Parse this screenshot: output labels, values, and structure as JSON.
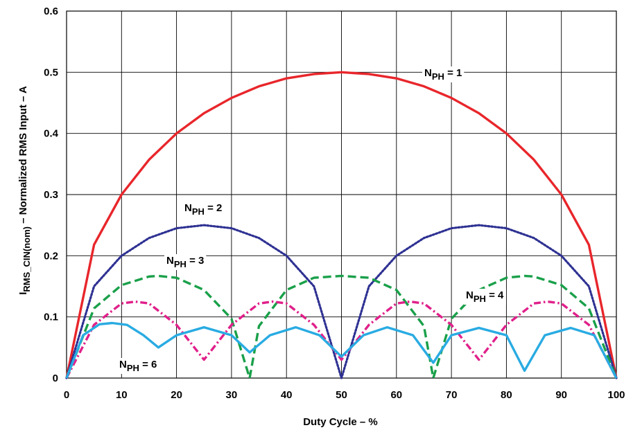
{
  "chart_data": {
    "type": "line",
    "title": "",
    "xlabel": "Duty Cycle – %",
    "ylabel": {
      "base": "I",
      "sub": "RMS_CIN(nom)",
      "rest": " – Normalized RMS Input – A"
    },
    "xlim": [
      0,
      100
    ],
    "ylim": [
      0,
      0.6
    ],
    "xticks": [
      "0",
      "10",
      "20",
      "30",
      "40",
      "50",
      "60",
      "70",
      "80",
      "90",
      "100"
    ],
    "yticks": [
      "0",
      "0.1",
      "0.2",
      "0.3",
      "0.4",
      "0.5",
      "0.6"
    ],
    "grid": true,
    "legend": "inline labels",
    "series": [
      {
        "phases": 1,
        "label": {
          "base": "N",
          "sub": "PH",
          "rest": " = 1"
        },
        "color": "#e8262b",
        "dash": "solid",
        "x": [
          0,
          5,
          10,
          15,
          20,
          25,
          30,
          35,
          40,
          45,
          50,
          55,
          60,
          65,
          70,
          75,
          80,
          85,
          90,
          95,
          100
        ],
        "values": [
          0,
          0.218,
          0.3,
          0.357,
          0.4,
          0.433,
          0.458,
          0.477,
          0.49,
          0.497,
          0.5,
          0.497,
          0.49,
          0.477,
          0.458,
          0.433,
          0.4,
          0.357,
          0.3,
          0.218,
          0
        ]
      },
      {
        "phases": 2,
        "label": {
          "base": "N",
          "sub": "PH",
          "rest": " = 2"
        },
        "color": "#2e3192",
        "dash": "dotted",
        "x": [
          0,
          5,
          10,
          15,
          20,
          25,
          30,
          35,
          40,
          45,
          50,
          55,
          60,
          65,
          70,
          75,
          80,
          85,
          90,
          95,
          100
        ],
        "values": [
          0,
          0.15,
          0.2,
          0.229,
          0.245,
          0.25,
          0.245,
          0.229,
          0.2,
          0.15,
          0,
          0.15,
          0.2,
          0.229,
          0.245,
          0.25,
          0.245,
          0.229,
          0.2,
          0.15,
          0
        ]
      },
      {
        "phases": 3,
        "label": {
          "base": "N",
          "sub": "PH",
          "rest": " = 3"
        },
        "color": "#1aa04a",
        "dash": "dashed",
        "x": [
          0,
          5,
          10,
          15,
          16.7,
          20,
          25,
          30,
          33.3,
          35,
          40,
          45,
          50,
          55,
          60,
          65,
          66.7,
          70,
          75,
          80,
          83.3,
          85,
          90,
          95,
          100
        ],
        "values": [
          0,
          0.114,
          0.152,
          0.166,
          0.167,
          0.164,
          0.144,
          0.097,
          0,
          0.085,
          0.144,
          0.164,
          0.167,
          0.164,
          0.144,
          0.085,
          0,
          0.097,
          0.144,
          0.164,
          0.167,
          0.166,
          0.152,
          0.114,
          0
        ]
      },
      {
        "phases": 4,
        "label": {
          "base": "N",
          "sub": "PH",
          "rest": " = 4"
        },
        "color": "#e0208a",
        "dash": "dash-dot",
        "x": [
          0,
          5,
          10,
          12.5,
          15,
          20,
          25,
          30,
          35,
          37.5,
          40,
          45,
          50,
          55,
          60,
          62.5,
          65,
          70,
          75,
          80,
          85,
          87.5,
          90,
          95,
          100
        ],
        "values": [
          0,
          0.087,
          0.122,
          0.125,
          0.122,
          0.087,
          0.03,
          0.087,
          0.122,
          0.125,
          0.122,
          0.087,
          0.03,
          0.087,
          0.122,
          0.125,
          0.122,
          0.087,
          0.03,
          0.087,
          0.122,
          0.125,
          0.122,
          0.087,
          0
        ]
      },
      {
        "phases": 6,
        "label": {
          "base": "N",
          "sub": "PH",
          "rest": " = 6"
        },
        "color": "#29abe2",
        "dash": "solid",
        "x": [
          0,
          3,
          6,
          8.3,
          11,
          14,
          16.7,
          20,
          25,
          30,
          33.3,
          37,
          41.7,
          46,
          50,
          54,
          58.3,
          63,
          66.7,
          70,
          75,
          80,
          83.3,
          87,
          91.7,
          96,
          100
        ],
        "values": [
          0,
          0.07,
          0.088,
          0.09,
          0.087,
          0.07,
          0.05,
          0.07,
          0.083,
          0.07,
          0.042,
          0.07,
          0.083,
          0.07,
          0.035,
          0.07,
          0.083,
          0.07,
          0.025,
          0.07,
          0.082,
          0.07,
          0.012,
          0.07,
          0.082,
          0.07,
          0
        ]
      }
    ]
  }
}
